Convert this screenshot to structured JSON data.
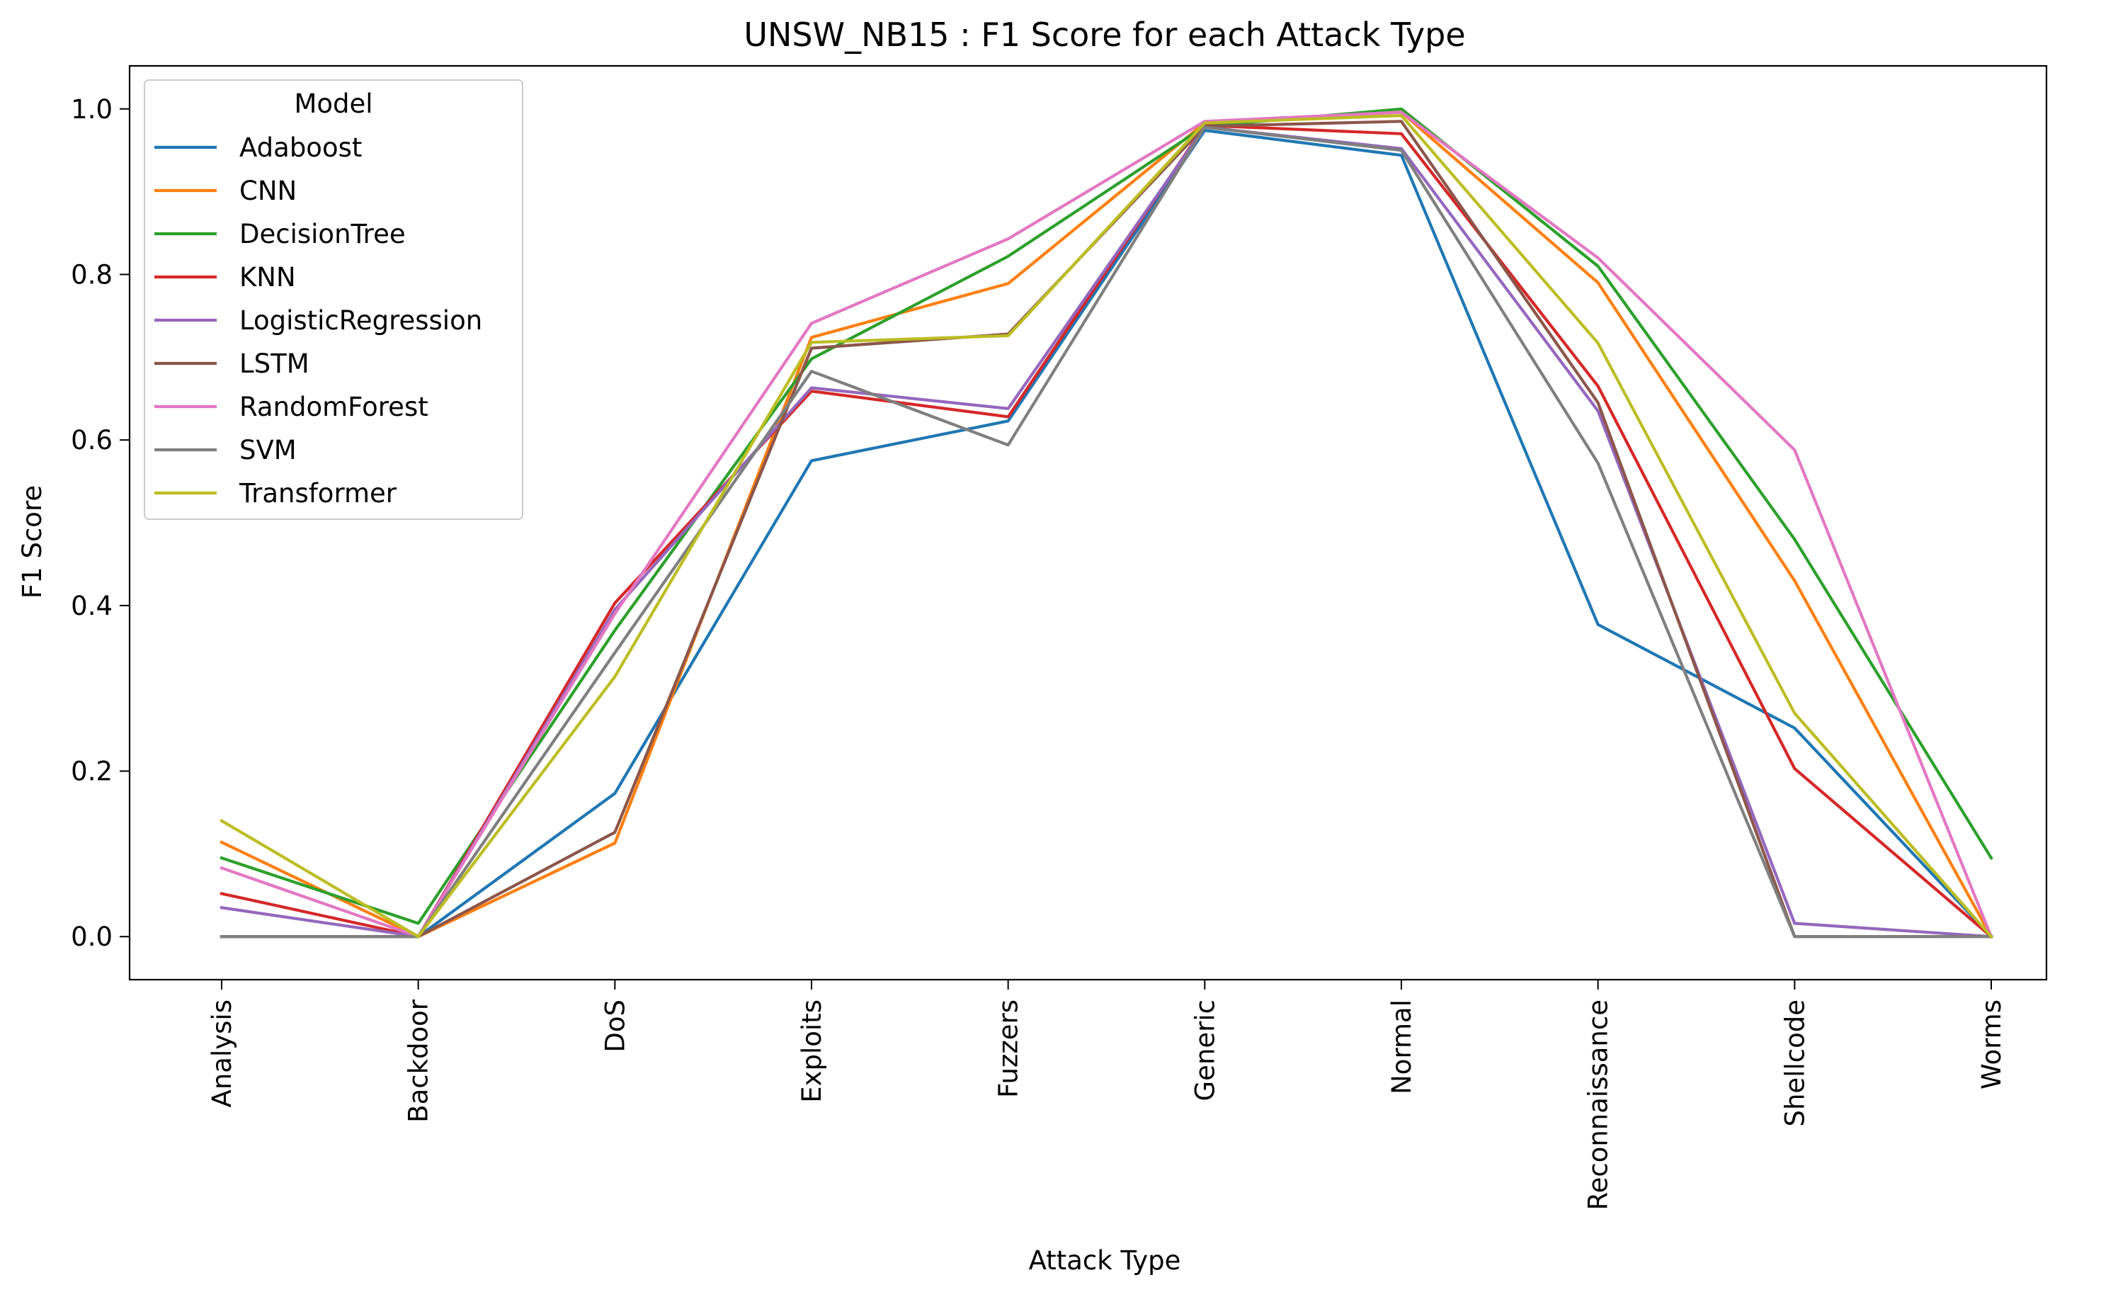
{
  "chart_data": {
    "type": "line",
    "title": "UNSW_NB15 : F1 Score for each Attack Type",
    "xlabel": "Attack Type",
    "ylabel": "F1 Score",
    "ylim": [
      -0.052,
      1.052
    ],
    "yticks": [
      0.0,
      0.2,
      0.4,
      0.6,
      0.8,
      1.0
    ],
    "ytick_labels": [
      "0.0",
      "0.2",
      "0.4",
      "0.6",
      "0.8",
      "1.0"
    ],
    "grid": false,
    "legend": {
      "title": "Model",
      "placement": "upper-left"
    },
    "categories": [
      "Analysis",
      "Backdoor",
      "DoS",
      "Exploits",
      "Fuzzers",
      "Generic",
      "Normal",
      "Reconnaissance",
      "Shellcode",
      "Worms"
    ],
    "series": [
      {
        "name": "Adaboost",
        "color": "#1f77b4",
        "values": [
          0.0,
          0.0,
          0.173,
          0.575,
          0.623,
          0.974,
          0.944,
          0.377,
          0.252,
          0.0
        ]
      },
      {
        "name": "CNN",
        "color": "#ff7f0e",
        "values": [
          0.114,
          0.0,
          0.113,
          0.724,
          0.789,
          0.983,
          0.996,
          0.79,
          0.43,
          0.0
        ]
      },
      {
        "name": "DecisionTree",
        "color": "#2ca02c",
        "values": [
          0.095,
          0.016,
          0.37,
          0.698,
          0.822,
          0.979,
          1.0,
          0.81,
          0.48,
          0.095
        ]
      },
      {
        "name": "KNN",
        "color": "#d62728",
        "values": [
          0.052,
          0.0,
          0.403,
          0.659,
          0.628,
          0.98,
          0.97,
          0.665,
          0.203,
          0.0
        ]
      },
      {
        "name": "LogisticRegression",
        "color": "#9467bd",
        "values": [
          0.035,
          0.0,
          0.395,
          0.663,
          0.638,
          0.978,
          0.952,
          0.635,
          0.016,
          0.0
        ]
      },
      {
        "name": "LSTM",
        "color": "#8c564b",
        "values": [
          0.0,
          0.0,
          0.126,
          0.711,
          0.728,
          0.979,
          0.985,
          0.645,
          0.0,
          0.0
        ]
      },
      {
        "name": "RandomForest",
        "color": "#e377c2",
        "values": [
          0.083,
          0.0,
          0.39,
          0.741,
          0.843,
          0.985,
          0.996,
          0.82,
          0.588,
          0.0
        ]
      },
      {
        "name": "SVM",
        "color": "#7f7f7f",
        "values": [
          0.0,
          0.0,
          0.343,
          0.683,
          0.594,
          0.978,
          0.95,
          0.572,
          0.0,
          0.0
        ]
      },
      {
        "name": "Transformer",
        "color": "#bcbd22",
        "values": [
          0.14,
          0.0,
          0.314,
          0.718,
          0.726,
          0.983,
          0.992,
          0.717,
          0.27,
          0.0
        ]
      }
    ]
  }
}
